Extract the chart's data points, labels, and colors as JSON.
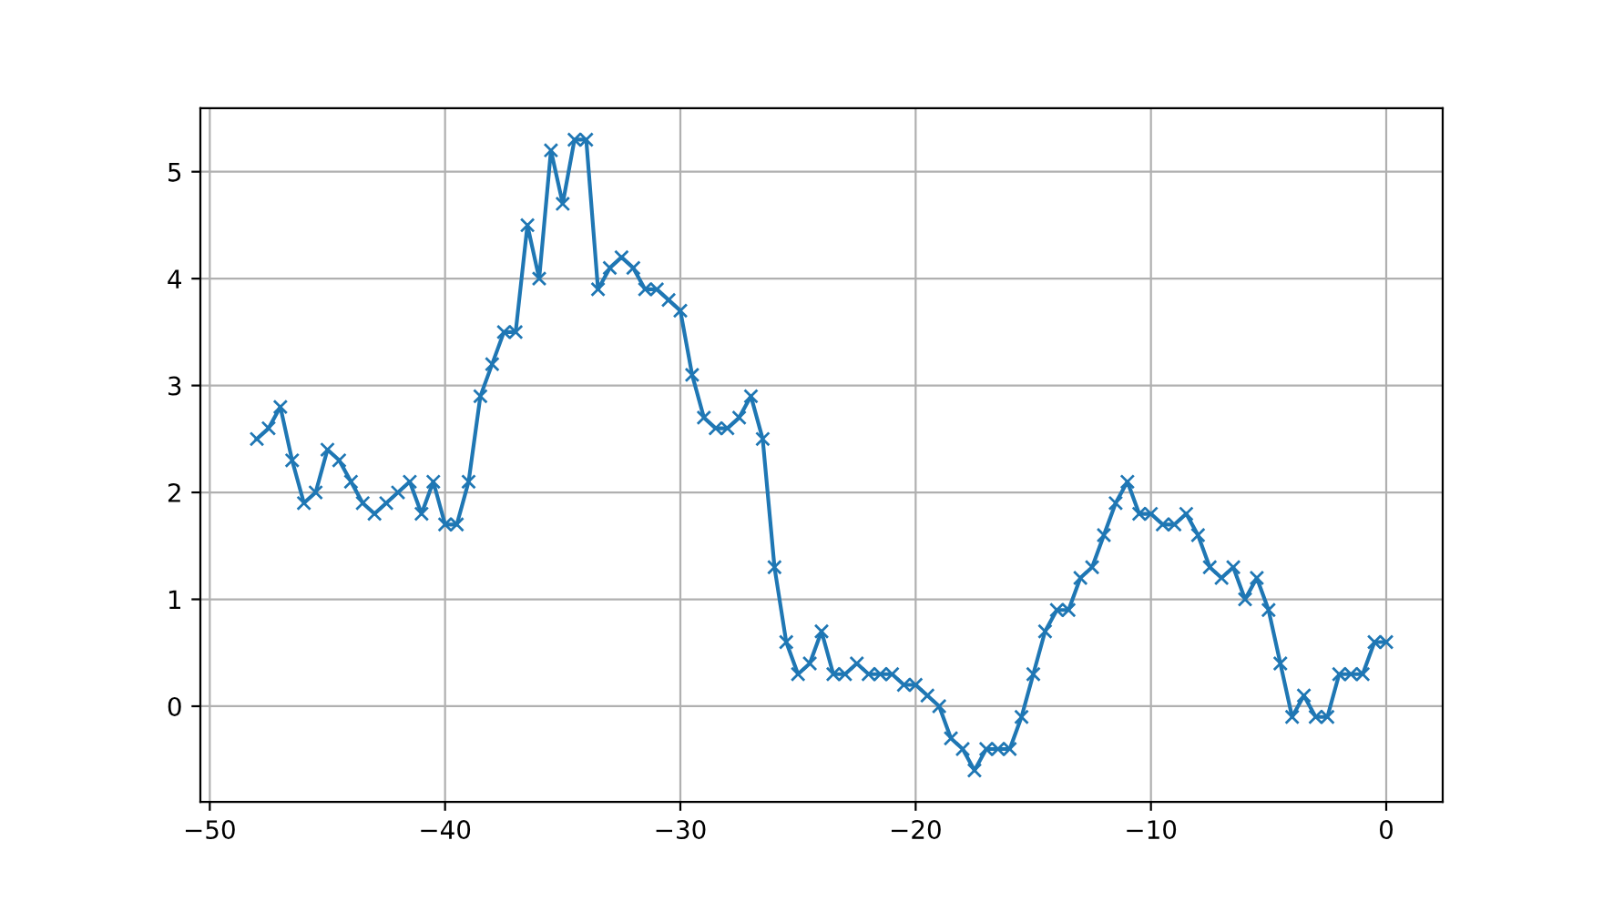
{
  "chart_data": {
    "type": "line",
    "x": [
      -48,
      -47.5,
      -47,
      -46.5,
      -46,
      -45.5,
      -45,
      -44.5,
      -44,
      -43.5,
      -43,
      -42.5,
      -42,
      -41.5,
      -41,
      -40.5,
      -40,
      -39.5,
      -39,
      -38.5,
      -38,
      -37.5,
      -37,
      -36.5,
      -36,
      -35.5,
      -35,
      -34.5,
      -34,
      -33.5,
      -33,
      -32.5,
      -32,
      -31.5,
      -31,
      -30.5,
      -30,
      -29.5,
      -29,
      -28.5,
      -28,
      -27.5,
      -27,
      -26.5,
      -26,
      -25.5,
      -25,
      -24.5,
      -24,
      -23.5,
      -23,
      -22.5,
      -22,
      -21.5,
      -21,
      -20.5,
      -20,
      -19.5,
      -19,
      -18.5,
      -18,
      -17.5,
      -17,
      -16.5,
      -16,
      -15.5,
      -15,
      -14.5,
      -14,
      -13.5,
      -13,
      -12.5,
      -12,
      -11.5,
      -11,
      -10.5,
      -10,
      -9.5,
      -9,
      -8.5,
      -8,
      -7.5,
      -7,
      -6.5,
      -6,
      -5.5,
      -5,
      -4.5,
      -4,
      -3.5,
      -3,
      -2.5,
      -2,
      -1.5,
      -1,
      -0.5,
      0
    ],
    "series": [
      {
        "color": "#1f77b4",
        "values": [
          2.5,
          2.6,
          2.8,
          2.3,
          1.9,
          2.0,
          2.4,
          2.3,
          2.1,
          1.9,
          1.8,
          1.9,
          2.0,
          2.1,
          1.8,
          2.1,
          1.7,
          1.7,
          2.1,
          2.9,
          3.2,
          3.5,
          3.5,
          4.5,
          4.0,
          5.2,
          4.7,
          5.3,
          5.3,
          3.9,
          4.1,
          4.2,
          4.1,
          3.9,
          3.9,
          3.8,
          3.7,
          3.1,
          2.7,
          2.6,
          2.6,
          2.7,
          2.9,
          2.5,
          1.3,
          0.6,
          0.3,
          0.4,
          0.7,
          0.3,
          0.3,
          0.4,
          0.3,
          0.3,
          0.3,
          0.2,
          0.2,
          0.1,
          0.0,
          -0.3,
          -0.4,
          -0.6,
          -0.4,
          -0.4,
          -0.4,
          -0.1,
          0.3,
          0.7,
          0.9,
          0.9,
          1.2,
          1.3,
          1.6,
          1.9,
          2.1,
          1.8,
          1.8,
          1.7,
          1.7,
          1.8,
          1.6,
          1.3,
          1.2,
          1.3,
          1.0,
          1.2,
          0.9,
          0.4,
          -0.1,
          0.1,
          -0.1,
          -0.1,
          0.3,
          0.3,
          0.3,
          0.6,
          0.6
        ]
      }
    ],
    "xlim": [
      -50.4,
      2.4
    ],
    "xticks": [
      {
        "value": -50,
        "label": "−50"
      },
      {
        "value": -40,
        "label": "−40"
      },
      {
        "value": -30,
        "label": "−30"
      },
      {
        "value": -20,
        "label": "−20"
      },
      {
        "value": -10,
        "label": "−10"
      },
      0
    ],
    "ylim": [
      -0.895,
      5.595
    ],
    "yticks": [
      0,
      1,
      2,
      3,
      4,
      5
    ],
    "grid": true,
    "marker": "cross",
    "line_style": "solid"
  }
}
